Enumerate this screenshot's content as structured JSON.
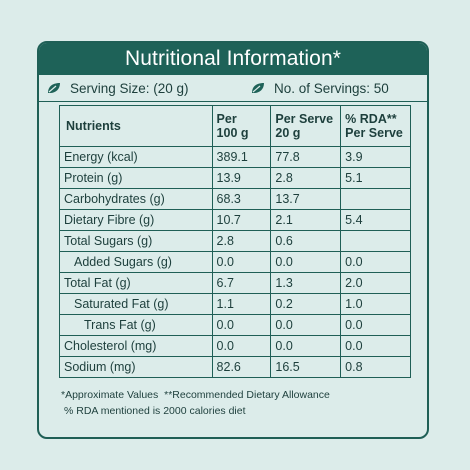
{
  "title": "Nutritional Information*",
  "serving": {
    "serving_size": "Serving Size: (20 g)",
    "servings": "No. of Servings: 50",
    "icon": "leaf-icon"
  },
  "table": {
    "headers": [
      "Nutrients",
      "Per\n100 g",
      "Per Serve\n20 g",
      "% RDA**\nPer Serve"
    ],
    "rows": [
      {
        "name": "Energy (kcal)",
        "per100": "389.1",
        "perServe": "77.8",
        "rda": "3.9",
        "indent": 0
      },
      {
        "name": "Protein (g)",
        "per100": "13.9",
        "perServe": "2.8",
        "rda": "5.1",
        "indent": 0
      },
      {
        "name": "Carbohydrates (g)",
        "per100": "68.3",
        "perServe": "13.7",
        "rda": "",
        "indent": 0
      },
      {
        "name": "Dietary Fibre (g)",
        "per100": "10.7",
        "perServe": "2.1",
        "rda": "5.4",
        "indent": 0
      },
      {
        "name": "Total Sugars (g)",
        "per100": "2.8",
        "perServe": "0.6",
        "rda": "",
        "indent": 0
      },
      {
        "name": "Added Sugars (g)",
        "per100": "0.0",
        "perServe": "0.0",
        "rda": "0.0",
        "indent": 1
      },
      {
        "name": "Total Fat (g)",
        "per100": "6.7",
        "perServe": "1.3",
        "rda": "2.0",
        "indent": 0
      },
      {
        "name": "Saturated Fat (g)",
        "per100": "1.1",
        "perServe": "0.2",
        "rda": "1.0",
        "indent": 1
      },
      {
        "name": "Trans Fat (g)",
        "per100": "0.0",
        "perServe": "0.0",
        "rda": "0.0",
        "indent": 2
      },
      {
        "name": "Cholesterol (mg)",
        "per100": "0.0",
        "perServe": "0.0",
        "rda": "0.0",
        "indent": 0
      },
      {
        "name": "Sodium (mg)",
        "per100": "82.6",
        "perServe": "16.5",
        "rda": "0.8",
        "indent": 0
      }
    ]
  },
  "notes": {
    "line1": "*Approximate Values  **Recommended Dietary Allowance",
    "line2": "% RDA mentioned is 2000 calories diet"
  },
  "colors": {
    "background": "#dcecea",
    "accent": "#1e6258",
    "text": "#1d3f3c"
  }
}
